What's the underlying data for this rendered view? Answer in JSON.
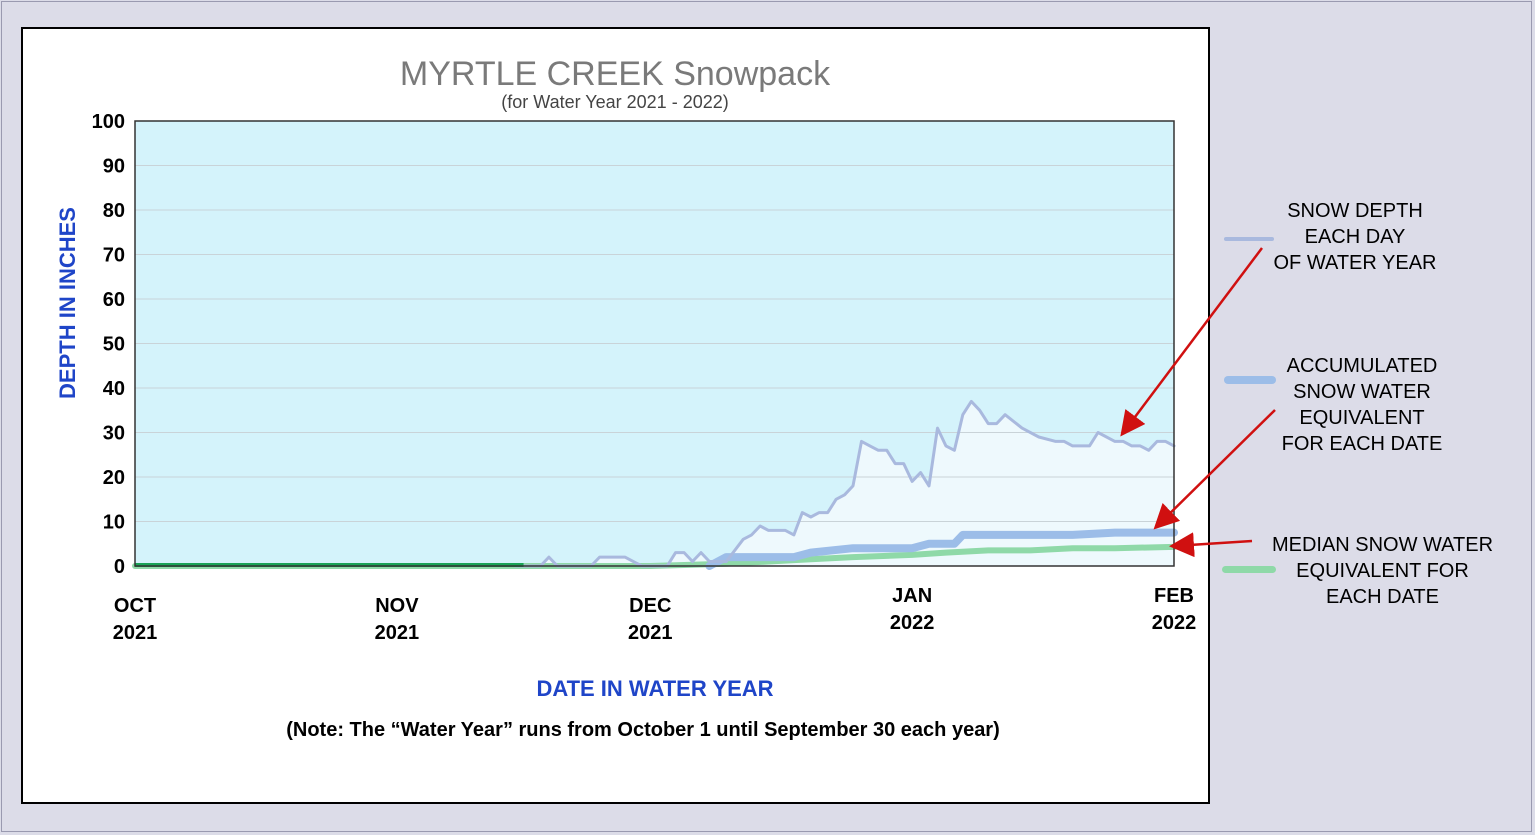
{
  "chart_data": {
    "type": "line",
    "title": "MYRTLE CREEK Snowpack",
    "subtitle": "(for Water Year 2021 - 2022)",
    "xlabel": "DATE IN WATER YEAR",
    "ylabel": "DEPTH IN INCHES",
    "note": "(Note:  The “Water Year” runs from October 1 until September 30 each year)",
    "ylim": [
      0,
      100
    ],
    "yticks": [
      0,
      10,
      20,
      30,
      40,
      50,
      60,
      70,
      80,
      90,
      100
    ],
    "xlim": [
      "2021-10-01",
      "2022-02-01"
    ],
    "xticks": [
      {
        "date": "2021-10-01",
        "label": "OCT\n2021"
      },
      {
        "date": "2021-11-01",
        "label": "NOV\n2021"
      },
      {
        "date": "2021-12-01",
        "label": "DEC\n2021"
      },
      {
        "date": "2022-01-01",
        "label": "JAN\n2022"
      },
      {
        "date": "2022-02-01",
        "label": "FEB\n2022"
      }
    ],
    "grid": true,
    "background_color": "#d4f3fb",
    "series": [
      {
        "name": "SNOW DEPTH\nEACH DAY\nOF WATER YEAR",
        "color": "#a9b9de",
        "x": [
          "2021-11-15",
          "2021-11-18",
          "2021-11-19",
          "2021-11-20",
          "2021-11-23",
          "2021-11-24",
          "2021-11-25",
          "2021-11-28",
          "2021-11-30",
          "2021-12-01",
          "2021-12-03",
          "2021-12-04",
          "2021-12-05",
          "2021-12-06",
          "2021-12-07",
          "2021-12-08",
          "2021-12-09",
          "2021-12-10",
          "2021-12-12",
          "2021-12-13",
          "2021-12-14",
          "2021-12-15",
          "2021-12-17",
          "2021-12-18",
          "2021-12-19",
          "2021-12-20",
          "2021-12-21",
          "2021-12-22",
          "2021-12-23",
          "2021-12-24",
          "2021-12-25",
          "2021-12-26",
          "2021-12-27",
          "2021-12-28",
          "2021-12-29",
          "2021-12-30",
          "2021-12-31",
          "2022-01-01",
          "2022-01-02",
          "2022-01-03",
          "2022-01-04",
          "2022-01-05",
          "2022-01-06",
          "2022-01-07",
          "2022-01-08",
          "2022-01-09",
          "2022-01-10",
          "2022-01-11",
          "2022-01-12",
          "2022-01-14",
          "2022-01-16",
          "2022-01-18",
          "2022-01-19",
          "2022-01-20",
          "2022-01-22",
          "2022-01-23",
          "2022-01-25",
          "2022-01-26",
          "2022-01-27",
          "2022-01-28",
          "2022-01-29",
          "2022-01-30",
          "2022-01-31",
          "2022-02-01"
        ],
        "values": [
          0,
          0,
          2,
          0,
          0,
          0,
          2,
          2,
          0,
          0,
          0,
          3,
          3,
          1,
          3,
          1,
          1,
          1,
          6,
          7,
          9,
          8,
          8,
          7,
          12,
          11,
          12,
          12,
          15,
          16,
          18,
          28,
          27,
          26,
          26,
          23,
          23,
          19,
          21,
          18,
          31,
          27,
          26,
          34,
          37,
          35,
          32,
          32,
          34,
          31,
          29,
          28,
          28,
          27,
          27,
          30,
          28,
          28,
          27,
          27,
          26,
          28,
          28,
          27
        ]
      },
      {
        "name": "ACCUMULATED\nSNOW WATER\nEQUIVALENT\nFOR EACH DATE",
        "color": "#9cbde8",
        "x": [
          "2021-12-08",
          "2021-12-10",
          "2021-12-15",
          "2021-12-18",
          "2021-12-20",
          "2021-12-25",
          "2022-01-01",
          "2022-01-03",
          "2022-01-06",
          "2022-01-07",
          "2022-01-10",
          "2022-01-15",
          "2022-01-20",
          "2022-01-25",
          "2022-02-01"
        ],
        "values": [
          0,
          2,
          2,
          2,
          3,
          4,
          4,
          5,
          5,
          7,
          7,
          7,
          7,
          7.5,
          7.5
        ]
      },
      {
        "name": "MEDIAN SNOW WATER\nEQUIVALENT FOR\nEACH DATE",
        "color": "#8fd9a8",
        "x": [
          "2021-10-01",
          "2021-11-20",
          "2021-12-01",
          "2021-12-10",
          "2021-12-15",
          "2021-12-20",
          "2021-12-25",
          "2022-01-01",
          "2022-01-05",
          "2022-01-10",
          "2022-01-15",
          "2022-01-20",
          "2022-01-25",
          "2022-02-01"
        ],
        "values": [
          0,
          0,
          0,
          0.5,
          1,
          1.5,
          2,
          2.5,
          3,
          3.5,
          3.5,
          4,
          4,
          4.3
        ]
      }
    ],
    "annotations": [
      {
        "target": "SNOW DEPTH\nEACH DAY\nOF WATER YEAR",
        "x": "2022-01-26",
        "y": 30
      },
      {
        "target": "ACCUMULATED\nSNOW WATER\nEQUIVALENT\nFOR EACH DATE",
        "x": "2022-01-30",
        "y": 9
      },
      {
        "target": "MEDIAN SNOW WATER\nEQUIVALENT FOR\nEACH DATE",
        "x": "2022-02-01",
        "y": 4.5
      }
    ]
  },
  "colors": {
    "title": "#7a7a7a",
    "axis_label": "#1f45c8",
    "arrow": "#d01010",
    "plot_background": "#d4f3fb",
    "envelope_fill": "#eef9fd"
  }
}
